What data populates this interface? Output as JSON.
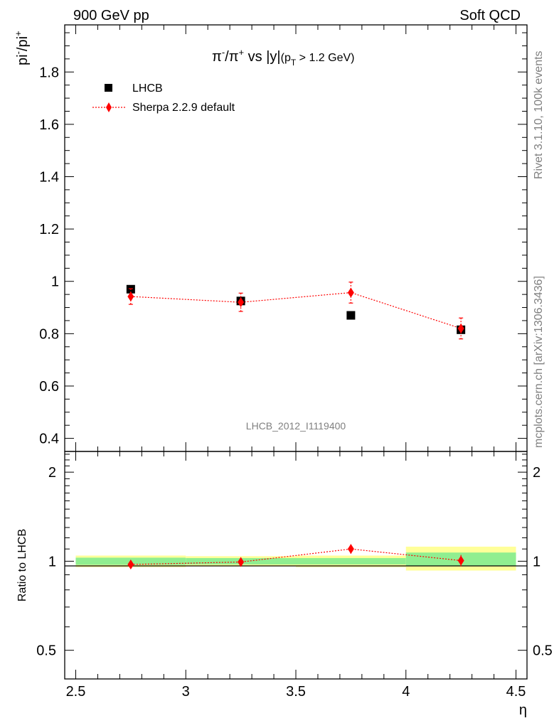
{
  "header": {
    "left": "900 GeV pp",
    "right": "Soft QCD"
  },
  "side_labels": {
    "rivet": "Rivet 3.1.10,  100k events",
    "source": "mcplots.cern.ch [arXiv:1306.3436]"
  },
  "chart_data": [
    {
      "type": "scatter",
      "title_main": "π",
      "title_sup1": "-",
      "title_mid": "/π",
      "title_sup2": "+",
      "title_tail": " vs |y|",
      "title_sub_open": "(p",
      "title_sub_T": "T",
      "title_sub_rest": " > 1.2 GeV)",
      "ylabel_main": "pi",
      "ylabel_sup1": "-",
      "ylabel_mid": "/pi",
      "ylabel_sup2": "+",
      "watermark": "LHCB_2012_I1119400",
      "xlim": [
        2.45,
        4.55
      ],
      "ylim": [
        0.35,
        1.98
      ],
      "yticks": [
        0.4,
        0.6,
        0.8,
        1,
        1.2,
        1.4,
        1.6,
        1.8
      ],
      "ytick_labels": [
        "0.4",
        "0.6",
        "0.8",
        "1",
        "1.2",
        "1.4",
        "1.6",
        "1.8"
      ],
      "legend_position": "top-left",
      "series": [
        {
          "name": "LHCB",
          "marker": "square",
          "color": "#000000",
          "x": [
            2.75,
            3.25,
            3.75,
            4.25
          ],
          "y": [
            0.97,
            0.925,
            0.87,
            0.815
          ],
          "xerr": [
            0.25,
            0.25,
            0.25,
            0.25
          ]
        },
        {
          "name": "Sherpa 2.2.9 default",
          "marker": "diamond",
          "color": "#ff0000",
          "line": "dotted",
          "x": [
            2.75,
            3.25,
            3.75,
            4.25
          ],
          "y": [
            0.942,
            0.92,
            0.957,
            0.82
          ],
          "yerr": [
            0.03,
            0.035,
            0.04,
            0.04
          ]
        }
      ]
    },
    {
      "type": "scatter",
      "ylabel": "Ratio to LHCB",
      "xlabel": "η",
      "xlim": [
        2.45,
        4.55
      ],
      "ylim": [
        0.4,
        2.35
      ],
      "yscale": "log",
      "yticks": [
        0.5,
        1,
        2
      ],
      "ytick_labels": [
        "0.5",
        "1",
        "2"
      ],
      "xticks": [
        2.5,
        3,
        3.5,
        4,
        4.5
      ],
      "xtick_labels": [
        "2.5",
        "3",
        "3.5",
        "4",
        "4.5"
      ],
      "bands": [
        {
          "x": [
            2.5,
            3.0
          ],
          "inner": [
            0.972,
            1.028
          ],
          "outer": [
            0.955,
            1.045
          ]
        },
        {
          "x": [
            3.0,
            3.5
          ],
          "inner": [
            0.975,
            1.025
          ],
          "outer": [
            0.96,
            1.04
          ]
        },
        {
          "x": [
            3.5,
            4.0
          ],
          "inner": [
            0.975,
            1.025
          ],
          "outer": [
            0.955,
            1.045
          ]
        },
        {
          "x": [
            4.0,
            4.5
          ],
          "inner": [
            0.965,
            1.07
          ],
          "outer": [
            0.93,
            1.12
          ]
        }
      ],
      "band_colors": {
        "inner": "#90ee90",
        "outer": "#ffff99"
      },
      "series": [
        {
          "name": "Sherpa 2.2.9 default",
          "marker": "diamond",
          "color": "#ff0000",
          "line": "dotted",
          "x": [
            2.75,
            3.25,
            3.75,
            4.25
          ],
          "y": [
            0.975,
            0.994,
            1.1,
            1.005
          ],
          "yerr": [
            0.03,
            0.035,
            0.04,
            0.045
          ]
        }
      ]
    }
  ]
}
